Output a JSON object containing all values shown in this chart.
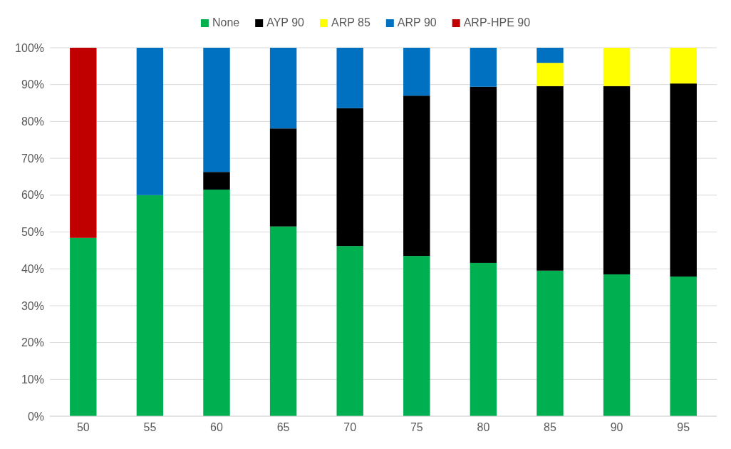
{
  "chart_data": {
    "type": "bar",
    "stacked": true,
    "categories": [
      "50",
      "55",
      "60",
      "65",
      "70",
      "75",
      "80",
      "85",
      "90",
      "95"
    ],
    "series": [
      {
        "name": "None",
        "color": "#00b050",
        "values": [
          48.4,
          60.0,
          61.5,
          51.5,
          46.2,
          43.5,
          41.6,
          39.5,
          38.5,
          37.9
        ]
      },
      {
        "name": "AYP 90",
        "color": "#000000",
        "values": [
          null,
          null,
          4.8,
          26.6,
          37.4,
          43.5,
          47.8,
          50.1,
          51.1,
          52.4
        ]
      },
      {
        "name": "ARP 85",
        "color": "#ffff00",
        "values": [
          null,
          null,
          null,
          null,
          null,
          null,
          null,
          6.3,
          10.4,
          9.7
        ]
      },
      {
        "name": "ARP 90",
        "color": "#0070c0",
        "values": [
          null,
          40.0,
          33.7,
          21.9,
          16.4,
          13.0,
          10.6,
          4.1,
          null,
          null
        ]
      },
      {
        "name": "ARP-HPE 90",
        "color": "#c00000",
        "values": [
          51.6,
          null,
          null,
          null,
          null,
          null,
          null,
          null,
          null,
          null
        ]
      }
    ],
    "ylim": [
      0,
      100
    ],
    "yticks": [
      {
        "value": 0,
        "label": "0%"
      },
      {
        "value": 10,
        "label": "10%"
      },
      {
        "value": 20,
        "label": "20%"
      },
      {
        "value": 30,
        "label": "30%"
      },
      {
        "value": 40,
        "label": "40%"
      },
      {
        "value": 50,
        "label": "50%"
      },
      {
        "value": 60,
        "label": "60%"
      },
      {
        "value": 70,
        "label": "70%"
      },
      {
        "value": 80,
        "label": "80%"
      },
      {
        "value": 90,
        "label": "90%"
      },
      {
        "value": 100,
        "label": "100%"
      }
    ],
    "grid": "y",
    "legend": "top"
  }
}
